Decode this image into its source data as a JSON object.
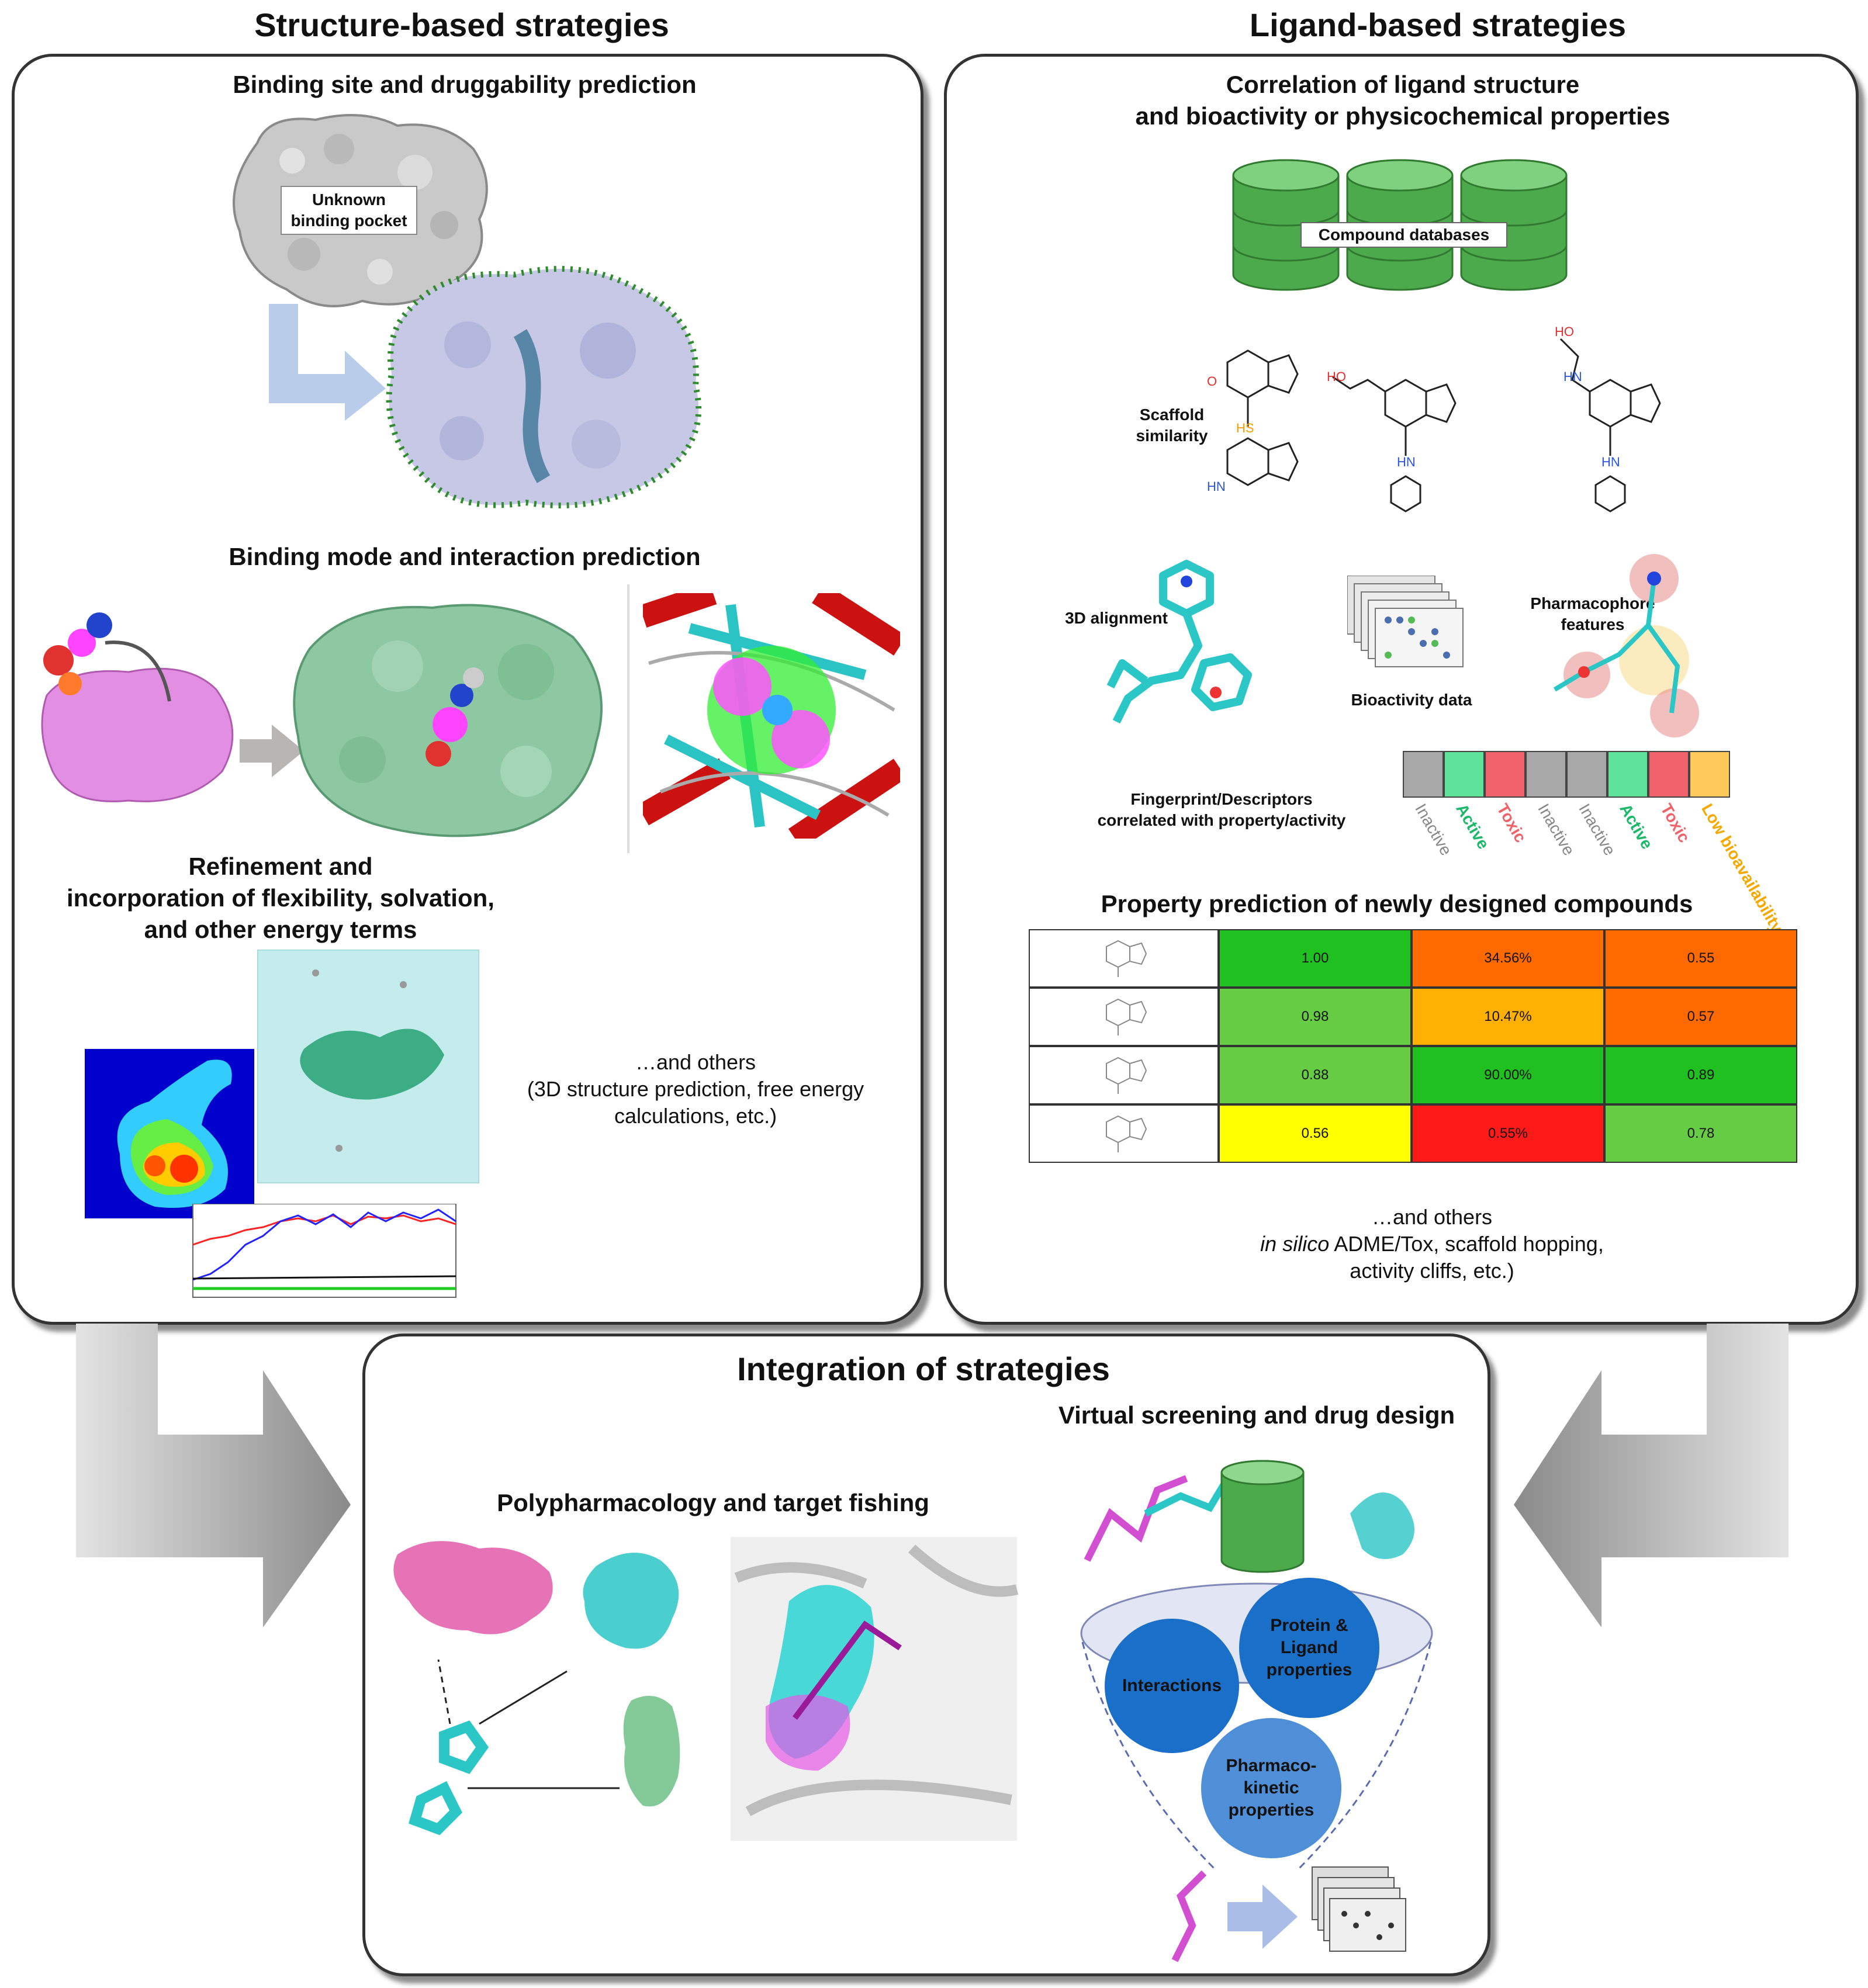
{
  "headings": {
    "structure": "Structure-based  strategies",
    "ligand": "Ligand-based strategies",
    "integration": "Integration of strategies"
  },
  "structure_panel": {
    "binding_site": "Binding site and druggability prediction",
    "unknown_pocket_line1": "Unknown",
    "unknown_pocket_line2": "binding pocket",
    "binding_mode": "Binding mode and interaction prediction",
    "refinement_line1": "Refinement and",
    "refinement_line2": "incorporation of flexibility, solvation,",
    "refinement_line3": "and other energy terms",
    "others_line1": "…and others",
    "others_line2": "(3D structure prediction, free energy",
    "others_line3": "calculations, etc.)"
  },
  "ligand_panel": {
    "correlation_line1": "Correlation of ligand structure",
    "correlation_line2": "and bioactivity or physicochemical properties",
    "compound_db": "Compound databases",
    "scaffold_line1": "Scaffold",
    "scaffold_line2": "similarity",
    "alignment": "3D alignment",
    "bioactivity": "Bioactivity data",
    "pharmacophore_line1": "Pharmacophore",
    "pharmacophore_line2": "features",
    "fingerprint_line1": "Fingerprint/Descriptors",
    "fingerprint_line2": "correlated with property/activity",
    "fingerprint_labels": [
      "Inactive",
      "Active",
      "Toxic",
      "Inactive",
      "Inactive",
      "Active",
      "Toxic",
      "Low bioavailability"
    ],
    "fingerprint_colors": [
      "#a8a8a8",
      "#5fe39a",
      "#f0626a",
      "#a8a8a8",
      "#a8a8a8",
      "#5fe39a",
      "#f0626a",
      "#ffc85a"
    ],
    "property_title": "Property prediction of newly designed compounds",
    "table": [
      {
        "c1": "1.00",
        "c2": "34.56%",
        "c3": "0.55",
        "k1": "#21c021",
        "k2": "#ff6a00",
        "k3": "#ff6a00"
      },
      {
        "c1": "0.98",
        "c2": "10.47%",
        "c3": "0.57",
        "k1": "#66cc44",
        "k2": "#ffb000",
        "k3": "#ff6a00"
      },
      {
        "c1": "0.88",
        "c2": "90.00%",
        "c3": "0.89",
        "k1": "#66cc44",
        "k2": "#21c021",
        "k3": "#21c021"
      },
      {
        "c1": "0.56",
        "c2": "0.55%",
        "c3": "0.78",
        "k1": "#ffff00",
        "k2": "#ff1a1a",
        "k3": "#66cc44"
      }
    ],
    "others_line1": "…and others",
    "others_line2_italic": "in silico",
    "others_line2_rest": " ADME/Tox, scaffold hopping,",
    "others_line3": "activity cliffs, etc.)"
  },
  "integration_panel": {
    "polypharm": "Polypharmacology and target fishing",
    "virtual_screening": "Virtual screening and drug design",
    "interactions": "Interactions",
    "protein_ligand_line1": "Protein &",
    "protein_ligand_line2": "Ligand",
    "protein_ligand_line3": "properties",
    "pharmaco_line1": "Pharmaco-",
    "pharmaco_line2": "kinetic",
    "pharmaco_line3": "properties"
  }
}
